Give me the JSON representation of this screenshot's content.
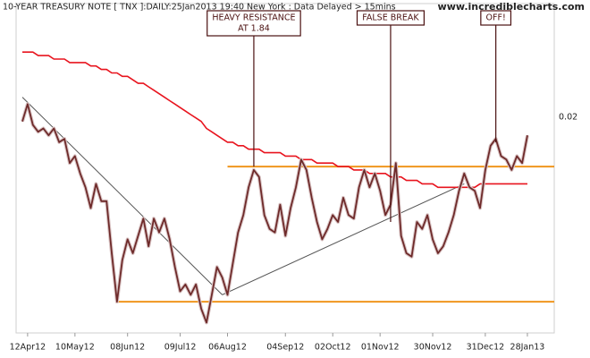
{
  "chart_data": {
    "type": "line",
    "title": "10-YEAR TREASURY NOTE [ TNX ]:DAILY:25Jan2013 19:40 New York : Data Delayed > 15mins",
    "source": "www.incrediblecharts.com",
    "right_axis_label": "0.02",
    "categories": [
      null,
      "12Apr12",
      null,
      null,
      null,
      null,
      null,
      null,
      null,
      null,
      "10May12",
      null,
      null,
      null,
      null,
      null,
      null,
      null,
      null,
      null,
      "08Jun12",
      null,
      null,
      null,
      null,
      null,
      null,
      null,
      null,
      null,
      "09Jul12",
      null,
      null,
      null,
      null,
      null,
      null,
      null,
      null,
      "06Aug12",
      null,
      null,
      null,
      null,
      null,
      null,
      null,
      null,
      null,
      null,
      "04Sep12",
      null,
      null,
      null,
      null,
      null,
      null,
      null,
      null,
      "02Oct12",
      null,
      null,
      null,
      null,
      null,
      null,
      null,
      null,
      "01Nov12",
      null,
      null,
      null,
      null,
      null,
      null,
      null,
      null,
      null,
      "30Nov12",
      null,
      null,
      null,
      null,
      null,
      null,
      null,
      null,
      null,
      "31Dec12",
      null,
      null,
      null,
      null,
      null,
      null,
      null,
      "28Jan13"
    ],
    "series": [
      {
        "color": "#6e2a2a",
        "values": [
          1.97,
          2.02,
          1.96,
          1.94,
          1.95,
          1.93,
          1.95,
          1.91,
          1.92,
          1.85,
          1.87,
          1.82,
          1.78,
          1.72,
          1.79,
          1.74,
          1.74,
          1.59,
          1.45,
          1.57,
          1.63,
          1.59,
          1.64,
          1.69,
          1.61,
          1.69,
          1.65,
          1.69,
          1.63,
          1.55,
          1.48,
          1.5,
          1.47,
          1.5,
          1.43,
          1.39,
          1.47,
          1.55,
          1.52,
          1.47,
          1.56,
          1.65,
          1.7,
          1.78,
          1.83,
          1.81,
          1.7,
          1.66,
          1.65,
          1.73,
          1.64,
          1.72,
          1.78,
          1.86,
          1.83,
          1.75,
          1.68,
          1.63,
          1.66,
          1.7,
          1.68,
          1.75,
          1.7,
          1.69,
          1.78,
          1.83,
          1.78,
          1.82,
          1.77,
          1.7,
          1.73,
          1.85,
          1.64,
          1.59,
          1.58,
          1.68,
          1.66,
          1.7,
          1.63,
          1.59,
          1.61,
          1.65,
          1.7,
          1.77,
          1.82,
          1.78,
          1.77,
          1.72,
          1.83,
          1.9,
          1.92,
          1.87,
          1.86,
          1.83,
          1.87,
          1.85,
          1.93
        ]
      },
      {
        "color": "#e8141e",
        "values": [
          2.17,
          2.17,
          2.17,
          2.16,
          2.16,
          2.16,
          2.15,
          2.15,
          2.15,
          2.14,
          2.14,
          2.14,
          2.14,
          2.13,
          2.13,
          2.12,
          2.12,
          2.11,
          2.11,
          2.1,
          2.1,
          2.09,
          2.08,
          2.08,
          2.07,
          2.06,
          2.05,
          2.04,
          2.03,
          2.02,
          2.01,
          2.0,
          1.99,
          1.98,
          1.97,
          1.95,
          1.94,
          1.93,
          1.92,
          1.91,
          1.91,
          1.9,
          1.9,
          1.89,
          1.89,
          1.89,
          1.88,
          1.88,
          1.88,
          1.88,
          1.87,
          1.87,
          1.87,
          1.86,
          1.86,
          1.86,
          1.85,
          1.85,
          1.85,
          1.85,
          1.84,
          1.84,
          1.84,
          1.83,
          1.83,
          1.83,
          1.82,
          1.82,
          1.82,
          1.82,
          1.81,
          1.81,
          1.81,
          1.8,
          1.8,
          1.8,
          1.79,
          1.79,
          1.79,
          1.78,
          1.78,
          1.78,
          1.78,
          1.78,
          1.78,
          1.78,
          1.78,
          1.79,
          1.79,
          1.79,
          1.79,
          1.79,
          1.79,
          1.79,
          1.79,
          1.79,
          1.79
        ]
      }
    ],
    "ylim": [
      1.36,
      2.31
    ],
    "reference_lines": [
      {
        "value": 1.84,
        "x_start": 39,
        "color": "#f0961e"
      },
      {
        "value": 1.45,
        "x_start": 18,
        "color": "#f0961e"
      }
    ],
    "trendlines": [
      {
        "color": "#555555",
        "points": [
          [
            0,
            2.04
          ],
          [
            38,
            1.47
          ]
        ]
      },
      {
        "color": "#555555",
        "points": [
          [
            38,
            1.47
          ],
          [
            84,
            1.79
          ]
        ]
      }
    ],
    "annotations": [
      {
        "lines": [
          "HEAVY RESISTANCE",
          "AT 1.84"
        ],
        "x": 44,
        "value": 1.84
      },
      {
        "lines": [
          "FALSE BREAK"
        ],
        "x": 70,
        "value": 1.68
      },
      {
        "lines": [
          "OFF!"
        ],
        "x": 90,
        "value": 1.91
      }
    ]
  }
}
